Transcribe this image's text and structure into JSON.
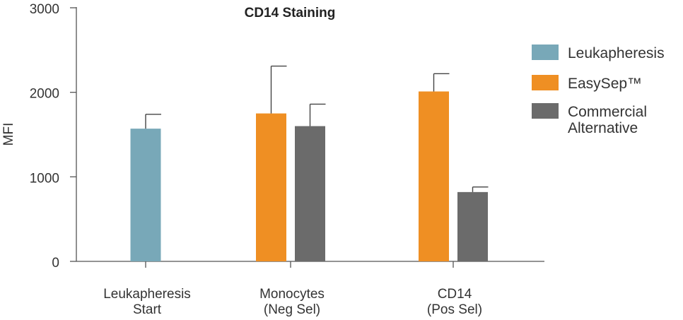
{
  "chart_data": {
    "type": "bar",
    "title": "CD14 Staining",
    "xlabel": "",
    "ylabel": "MFI",
    "ylim": [
      0,
      3000
    ],
    "yticks": [
      0,
      1000,
      2000,
      3000
    ],
    "categories": [
      [
        "Leukapheresis",
        "Start"
      ],
      [
        "Monocytes",
        "(Neg Sel)"
      ],
      [
        "CD14",
        "(Pos Sel)"
      ]
    ],
    "series": [
      {
        "name": "Leukapheresis",
        "color": "#78a8b8",
        "values": [
          1570,
          null,
          null
        ],
        "errors": [
          170,
          null,
          null
        ]
      },
      {
        "name": "EasySep™",
        "color": "#ef8f23",
        "values": [
          null,
          1750,
          2010
        ],
        "errors": [
          null,
          560,
          210
        ]
      },
      {
        "name": "Commercial Alternative",
        "color": "#6b6b6b",
        "values": [
          null,
          1600,
          820
        ],
        "errors": [
          null,
          260,
          60
        ]
      }
    ],
    "legend": {
      "position": "right",
      "entries": [
        {
          "lines": [
            "Leukapheresis"
          ],
          "color": "#78a8b8"
        },
        {
          "lines": [
            "EasySep™"
          ],
          "color": "#ef8f23"
        },
        {
          "lines": [
            "Commercial",
            "Alternative"
          ],
          "color": "#6b6b6b"
        }
      ]
    },
    "grid": false
  }
}
